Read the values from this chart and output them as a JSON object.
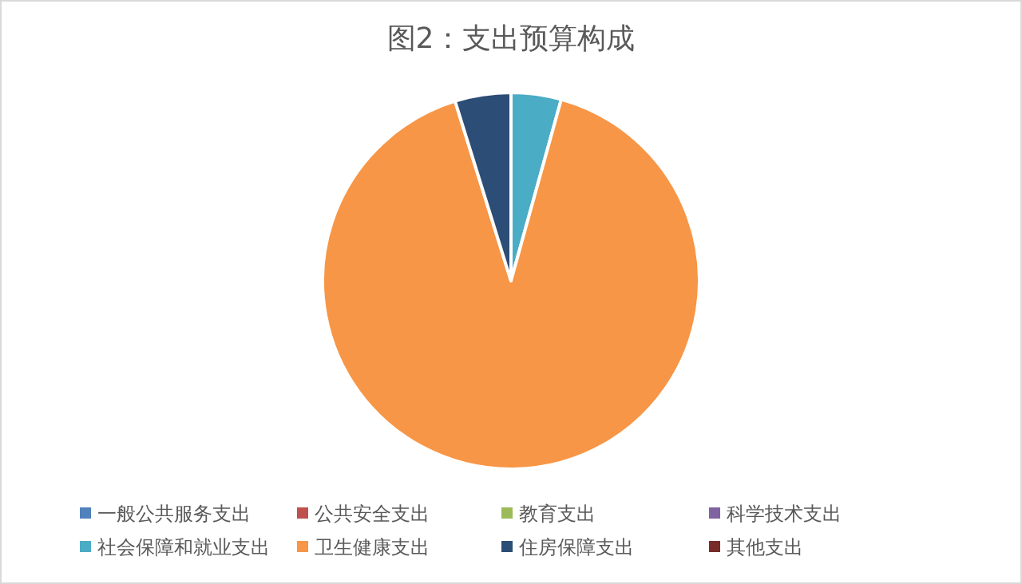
{
  "chart_data": {
    "type": "pie",
    "title": "图2：支出预算构成",
    "categories": [
      "一般公共服务支出",
      "公共安全支出",
      "教育支出",
      "科学技术支出",
      "社会保障和就业支出",
      "卫生健康支出",
      "住房保障支出",
      "其他支出"
    ],
    "values": [
      0,
      0,
      0,
      0,
      4.3,
      90.9,
      4.8,
      0
    ],
    "colors": [
      "#4f81bd",
      "#c0504d",
      "#9bbb59",
      "#8064a2",
      "#4bacc6",
      "#f79646",
      "#2c4d75",
      "#772c2a"
    ],
    "legend": "bottom"
  }
}
